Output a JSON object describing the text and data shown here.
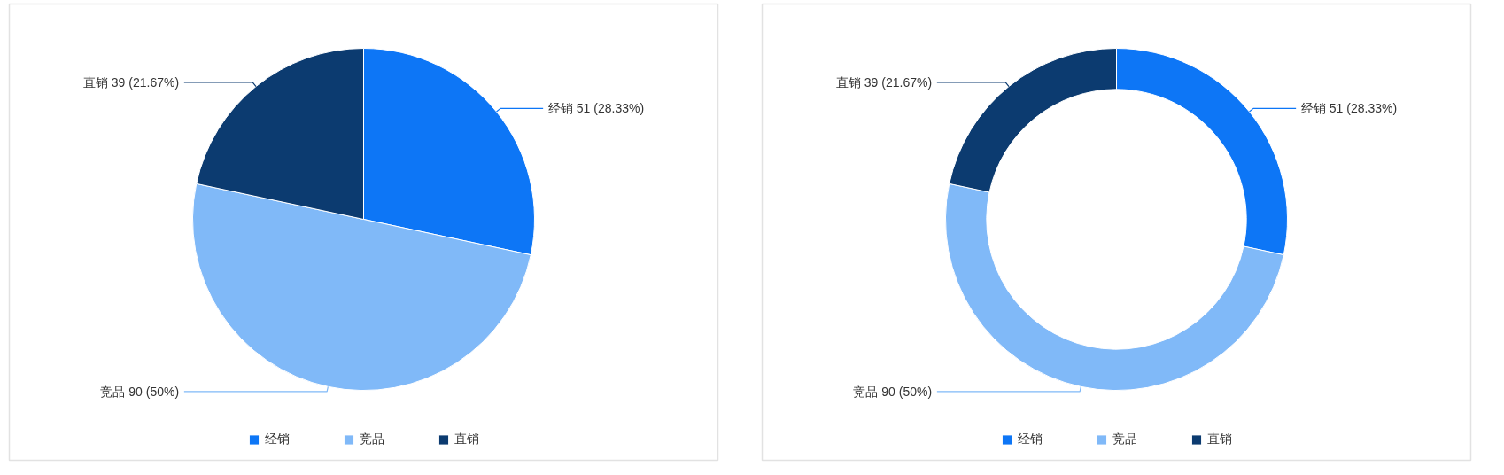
{
  "chart_data": [
    {
      "type": "pie",
      "categories": [
        "经销",
        "竞品",
        "直销"
      ],
      "values": [
        51,
        90,
        39
      ],
      "colors": [
        "#0d76f6",
        "#80b9f8",
        "#0c3b70"
      ],
      "value_labels": [
        "经销 51 (28.33%)",
        "竞品 90 (50%)",
        "直销 39 (21.67%)"
      ],
      "legend": "bottom"
    },
    {
      "type": "donut",
      "categories": [
        "经销",
        "竞品",
        "直销"
      ],
      "values": [
        51,
        90,
        39
      ],
      "colors": [
        "#0d76f6",
        "#80b9f8",
        "#0c3b70"
      ],
      "value_labels": [
        "经销 51 (28.33%)",
        "竞品 90 (50%)",
        "直销 39 (21.67%)"
      ],
      "legend": "bottom"
    }
  ]
}
